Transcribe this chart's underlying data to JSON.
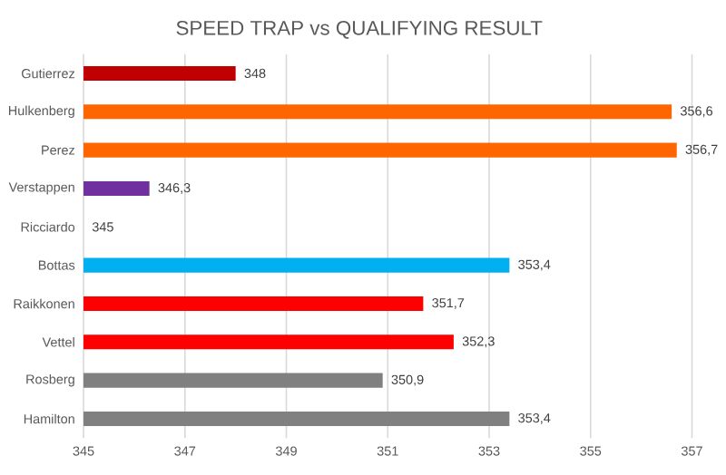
{
  "chart_data": {
    "type": "bar",
    "orientation": "horizontal",
    "title": "SPEED TRAP vs QUALIFYING RESULT",
    "categories": [
      "Gutierrez",
      "Hulkenberg",
      "Perez",
      "Verstappen",
      "Ricciardo",
      "Bottas",
      "Raikkonen",
      "Vettel",
      "Rosberg",
      "Hamilton"
    ],
    "values": [
      348,
      356.6,
      356.7,
      346.3,
      345,
      353.4,
      351.7,
      352.3,
      350.9,
      353.4
    ],
    "colors": [
      "#c00000",
      "#ff6600",
      "#ff6600",
      "#7030a0",
      "#1e2a5a",
      "#00b0f0",
      "#ff0000",
      "#ff0000",
      "#808080",
      "#808080"
    ],
    "value_labels": [
      "348",
      "356,6",
      "356,7",
      "346,3",
      "345",
      "353,4",
      "351,7",
      "352,3",
      "350,9",
      "353,4"
    ],
    "xlim": [
      345,
      357
    ],
    "xticks": [
      345,
      347,
      349,
      351,
      353,
      355,
      357
    ],
    "grid": "x"
  }
}
